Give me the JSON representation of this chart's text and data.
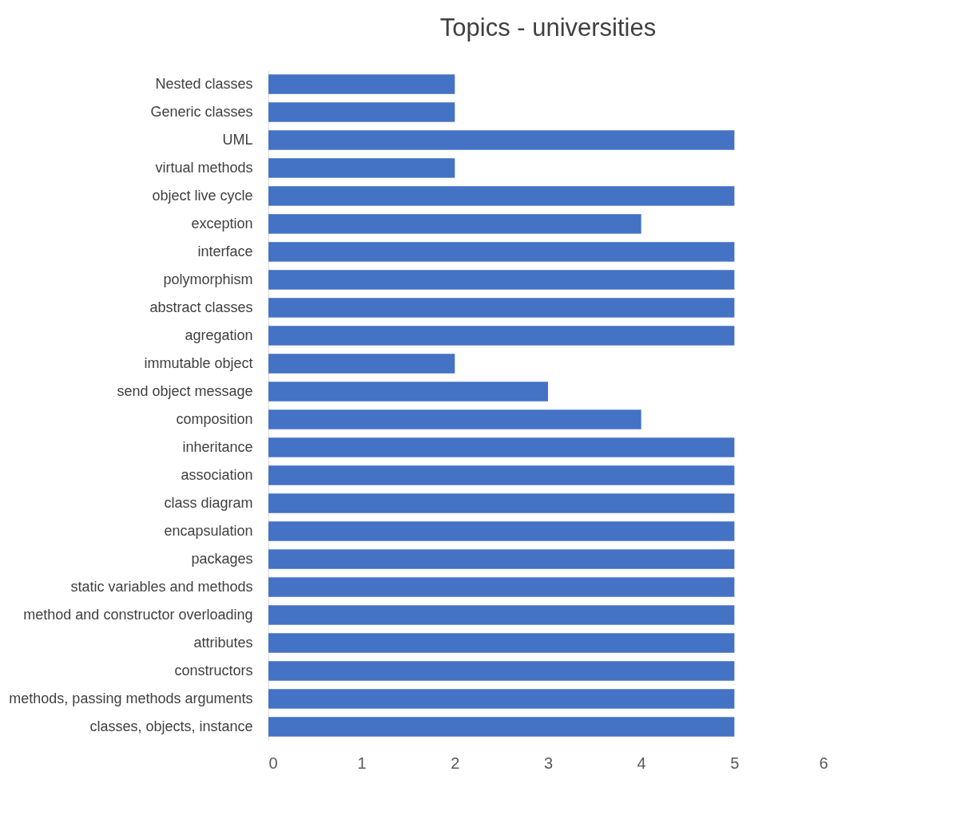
{
  "chart_data": {
    "type": "bar",
    "orientation": "horizontal",
    "title": "Topics - universities",
    "categories": [
      "Nested classes",
      "Generic classes",
      "UML",
      "virtual methods",
      "object live cycle",
      "exception",
      "interface",
      "polymorphism",
      "abstract classes",
      "agregation",
      "immutable object",
      "send object message",
      "composition",
      "inheritance",
      "association",
      "class diagram",
      "encapsulation",
      "packages",
      "static variables and methods",
      "method and constructor overloading",
      "attributes",
      "constructors",
      "methods, passing methods arguments",
      "classes, objects, instance"
    ],
    "values": [
      2,
      2,
      5,
      2,
      5,
      4,
      5,
      5,
      5,
      5,
      2,
      3,
      4,
      5,
      5,
      5,
      5,
      5,
      5,
      5,
      5,
      5,
      5,
      5
    ],
    "color": "#4472c4",
    "xlim": [
      0,
      6
    ],
    "xticks": [
      0,
      1,
      2,
      3,
      4,
      5,
      6
    ],
    "grid": false
  }
}
